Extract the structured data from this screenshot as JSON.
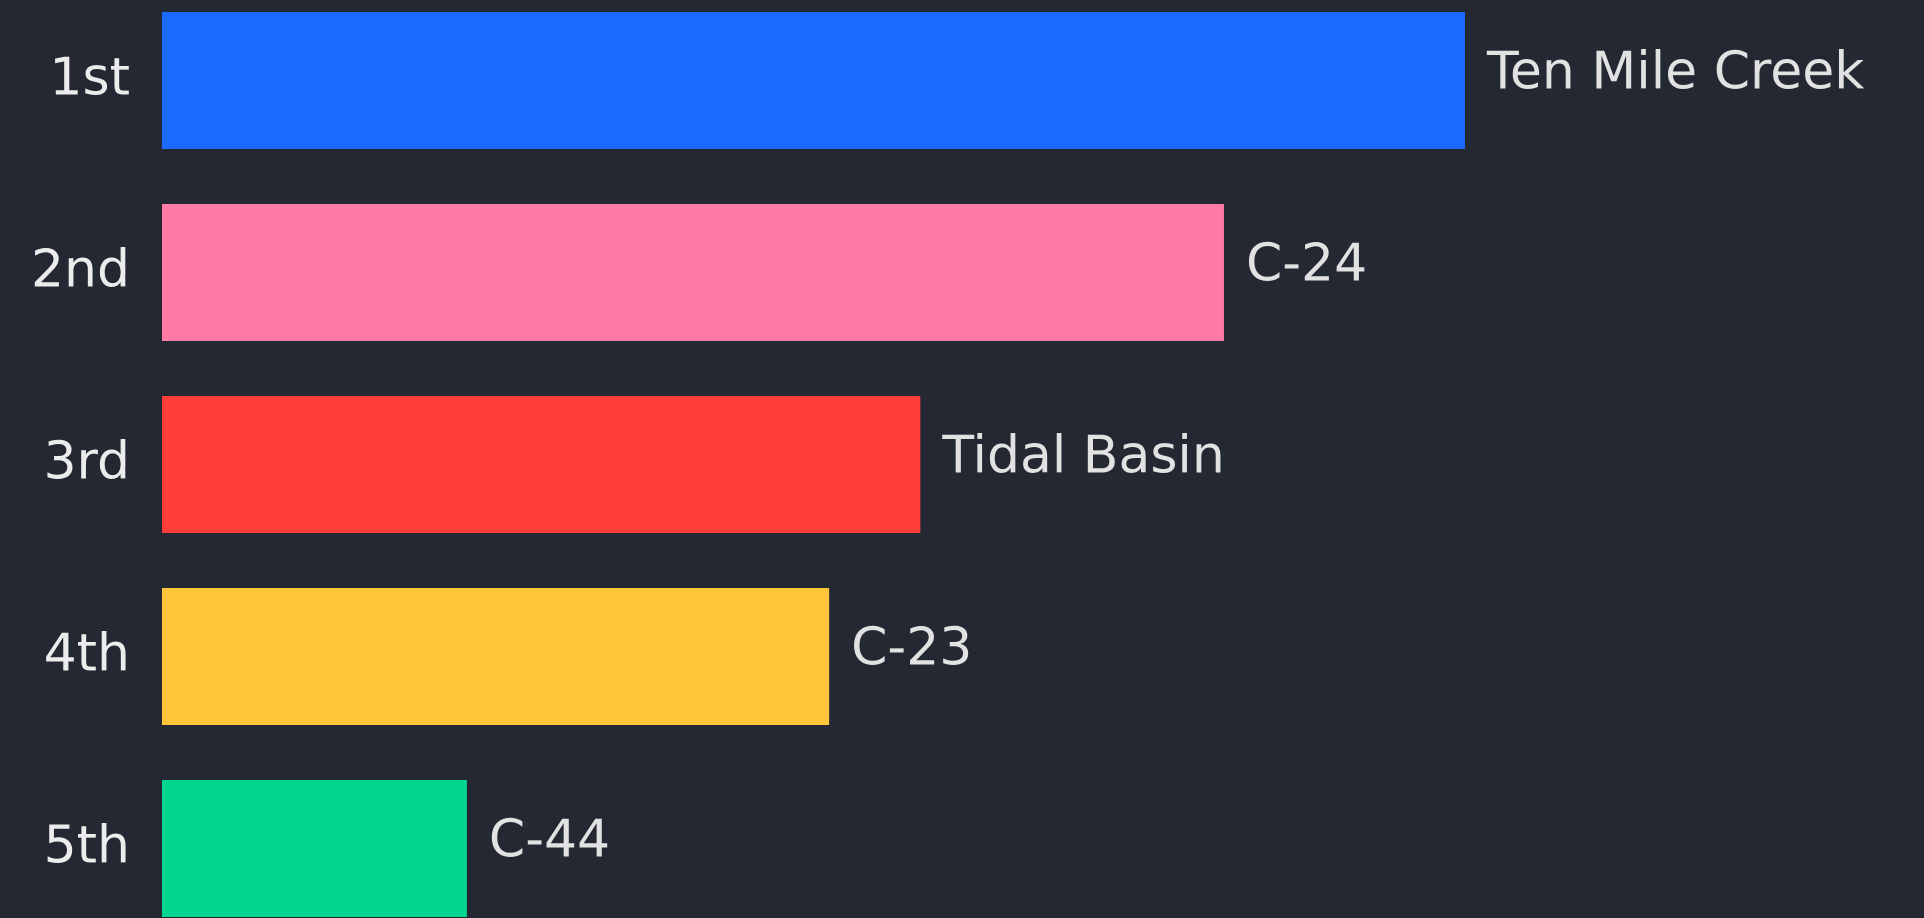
{
  "chart_data": {
    "type": "bar",
    "orientation": "horizontal",
    "categories": [
      "1st",
      "2nd",
      "3rd",
      "4th",
      "5th"
    ],
    "labels": [
      "Ten Mile Creek",
      "C-24",
      "Tidal Basin",
      "C-23",
      "C-44"
    ],
    "values": [
      100,
      81.5,
      58.2,
      51.2,
      23.4
    ],
    "colors": [
      "#1a6aff",
      "#ff7ba6",
      "#ff3e3a",
      "#ffc53a",
      "#00d68f"
    ]
  }
}
